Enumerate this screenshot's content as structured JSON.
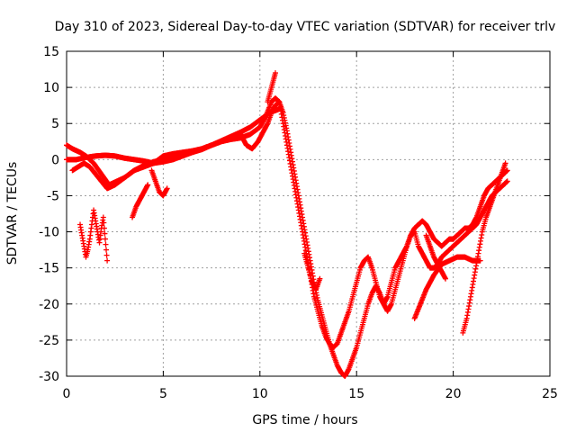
{
  "chart_data": {
    "type": "scatter",
    "title": "Day 310 of 2023, Sidereal Day-to-day VTEC variation (SDTVAR) for receiver trlv",
    "xlabel": "GPS time / hours",
    "ylabel": "SDTVAR / TECUs",
    "xlim": [
      0,
      25
    ],
    "ylim": [
      -30,
      15
    ],
    "xticks": [
      "0",
      "5",
      "10",
      "15",
      "20",
      "25"
    ],
    "yticks": [
      "15",
      "10",
      "5",
      "0",
      "-5",
      "-10",
      "-15",
      "-20",
      "-25",
      "-30"
    ],
    "grid": true,
    "marker": "+",
    "color": "#ff0000",
    "series": [
      {
        "x": [
          0.0,
          0.3,
          0.7,
          1.0,
          1.4,
          1.8,
          2.2,
          2.6,
          3.0,
          3.5,
          4.0,
          4.5,
          5.0,
          5.5,
          6.0,
          6.5,
          7.0,
          7.5,
          8.0,
          8.5,
          9.0,
          9.3,
          9.6,
          9.9,
          10.2,
          10.4,
          10.6,
          10.8,
          11.0,
          11.2,
          11.4,
          11.6,
          11.8,
          12.0,
          12.2,
          12.4,
          12.6,
          12.8,
          13.0,
          13.2,
          13.4,
          13.6,
          13.8,
          14.0,
          14.2,
          14.4,
          14.6,
          14.8,
          15.0,
          15.2,
          15.4,
          15.6,
          15.8,
          16.0,
          16.2,
          16.4,
          16.6,
          16.8,
          17.0,
          17.2,
          17.4,
          17.6,
          17.8,
          18.0,
          18.2,
          18.4,
          18.6,
          18.8,
          19.0,
          19.2,
          19.4,
          19.6,
          19.8,
          20.0,
          20.2,
          20.4,
          20.6,
          20.8,
          21.0,
          21.2,
          21.4,
          21.6,
          21.8,
          22.0,
          22.2,
          22.4,
          22.6,
          22.8
        ],
        "y": [
          2.0,
          1.5,
          1.0,
          0.5,
          -0.5,
          -2.0,
          -3.5,
          -3.0,
          -2.5,
          -1.5,
          -1.0,
          -0.5,
          0.5,
          0.8,
          1.0,
          1.2,
          1.5,
          2.0,
          2.5,
          3.0,
          3.5,
          2.0,
          1.5,
          2.5,
          4.0,
          5.0,
          6.5,
          7.5,
          8.0,
          5.0,
          2.0,
          -1.0,
          -4.0,
          -7.0,
          -10.0,
          -13.0,
          -16.0,
          -19.0,
          -21.0,
          -23.0,
          -24.5,
          -25.5,
          -26.0,
          -25.5,
          -24.0,
          -22.5,
          -21.0,
          -19.0,
          -17.0,
          -15.0,
          -14.0,
          -13.5,
          -15.0,
          -17.0,
          -19.0,
          -20.0,
          -19.0,
          -17.0,
          -15.0,
          -14.0,
          -13.0,
          -12.0,
          -10.5,
          -10.0,
          -12.0,
          -13.0,
          -14.0,
          -15.0,
          -15.0,
          -14.5,
          -13.5,
          -13.0,
          -12.5,
          -12.0,
          -11.5,
          -11.0,
          -10.5,
          -10.0,
          -9.5,
          -9.0,
          -8.0,
          -7.0,
          -6.0,
          -5.0,
          -4.5,
          -4.0,
          -3.5,
          -3.0
        ]
      },
      {
        "x": [
          0.0,
          0.5,
          1.0,
          1.5,
          2.0,
          2.5,
          3.0,
          3.5,
          4.0,
          4.5,
          5.0,
          5.5,
          6.0,
          6.5,
          7.0,
          7.5,
          8.0,
          8.5,
          9.0,
          9.5,
          10.0,
          10.3,
          10.6,
          10.8,
          11.0,
          11.2,
          11.4,
          11.6,
          11.8,
          12.0,
          12.2,
          12.4,
          12.6,
          12.8,
          13.0,
          13.2,
          13.4,
          13.6,
          13.8,
          14.0,
          14.2,
          14.4,
          14.6,
          14.8,
          15.0,
          15.2,
          15.4,
          15.6,
          15.8,
          16.0,
          16.2,
          16.4,
          16.6,
          16.8,
          17.0,
          17.2,
          17.4,
          17.6,
          17.8,
          18.0,
          18.2,
          18.4,
          18.6,
          18.8,
          19.0,
          19.2,
          19.4,
          19.6,
          19.8,
          20.0,
          20.2,
          20.4,
          20.6,
          20.8,
          21.0,
          21.2,
          21.4,
          21.6,
          21.8,
          22.0,
          22.2,
          22.4,
          22.6,
          22.8
        ],
        "y": [
          0.0,
          0.0,
          0.3,
          0.5,
          0.6,
          0.5,
          0.2,
          0.0,
          -0.2,
          -0.5,
          -0.3,
          0.0,
          0.5,
          1.0,
          1.5,
          2.0,
          2.5,
          2.8,
          3.0,
          3.5,
          4.5,
          6.0,
          8.0,
          8.5,
          8.0,
          6.5,
          4.0,
          1.0,
          -2.0,
          -5.0,
          -8.0,
          -11.0,
          -14.0,
          -17.0,
          -19.5,
          -21.5,
          -23.5,
          -25.5,
          -27.0,
          -28.5,
          -29.5,
          -30.0,
          -29.0,
          -27.5,
          -26.0,
          -24.0,
          -22.0,
          -20.0,
          -18.5,
          -17.5,
          -18.5,
          -20.0,
          -21.0,
          -20.0,
          -18.0,
          -16.0,
          -14.0,
          -12.0,
          -10.5,
          -9.5,
          -9.0,
          -8.5,
          -9.0,
          -10.0,
          -11.0,
          -11.5,
          -12.0,
          -11.5,
          -11.0,
          -11.0,
          -10.5,
          -10.0,
          -9.5,
          -9.5,
          -9.0,
          -8.0,
          -6.5,
          -5.0,
          -4.0,
          -3.5,
          -3.0,
          -2.5,
          -2.0,
          -1.5
        ]
      },
      {
        "x": [
          0.3,
          0.6,
          0.9,
          1.2,
          1.5,
          1.8,
          2.1,
          2.5,
          3.0,
          3.5,
          4.0,
          4.5,
          5.0,
          5.5,
          6.0,
          6.5,
          7.0,
          7.5,
          8.0,
          8.5,
          9.0,
          9.5,
          10.0,
          10.5,
          11.0
        ],
        "y": [
          -1.5,
          -1.0,
          -0.5,
          -1.0,
          -2.0,
          -3.0,
          -4.0,
          -3.5,
          -2.5,
          -1.5,
          -0.8,
          -0.3,
          0.0,
          0.3,
          0.6,
          1.0,
          1.4,
          2.0,
          2.6,
          3.2,
          3.8,
          4.5,
          5.5,
          6.5,
          7.0
        ]
      },
      {
        "x": [
          0.7,
          0.8,
          0.9,
          1.0,
          1.1,
          1.2,
          1.3,
          1.4,
          1.5,
          1.6,
          1.7,
          1.8,
          1.9,
          2.0,
          2.1
        ],
        "y": [
          -9.0,
          -10.5,
          -12.0,
          -13.5,
          -12.5,
          -11.0,
          -9.0,
          -7.0,
          -8.5,
          -10.0,
          -11.5,
          -9.5,
          -8.0,
          -11.0,
          -14.0
        ]
      },
      {
        "x": [
          3.4,
          3.6,
          3.8,
          4.0,
          4.2
        ],
        "y": [
          -8.0,
          -6.5,
          -5.5,
          -4.5,
          -3.5
        ]
      },
      {
        "x": [
          4.4,
          4.6,
          4.8,
          5.0,
          5.2
        ],
        "y": [
          -1.5,
          -3.0,
          -4.5,
          -5.0,
          -4.0
        ]
      },
      {
        "x": [
          10.4,
          10.5,
          10.6,
          10.7,
          10.8
        ],
        "y": [
          8.0,
          9.0,
          10.0,
          11.0,
          12.0
        ]
      },
      {
        "x": [
          12.3,
          12.5,
          12.7,
          12.9,
          13.1
        ],
        "y": [
          -13.0,
          -15.0,
          -17.0,
          -18.0,
          -16.5
        ]
      },
      {
        "x": [
          18.0,
          18.3,
          18.6,
          19.0,
          19.4,
          19.8,
          20.2,
          20.6,
          21.0,
          21.4
        ],
        "y": [
          -22.0,
          -20.0,
          -18.0,
          -16.0,
          -14.5,
          -14.0,
          -13.5,
          -13.5,
          -14.0,
          -14.0
        ]
      },
      {
        "x": [
          20.5,
          20.7,
          20.9,
          21.1,
          21.3,
          21.5,
          21.7,
          21.9,
          22.1,
          22.3,
          22.5,
          22.7
        ],
        "y": [
          -24.0,
          -22.0,
          -19.0,
          -16.0,
          -13.0,
          -10.0,
          -8.0,
          -6.5,
          -5.0,
          -3.5,
          -2.0,
          -0.5
        ]
      },
      {
        "x": [
          18.6,
          18.8,
          19.0,
          19.2,
          19.4,
          19.6
        ],
        "y": [
          -10.5,
          -12.0,
          -13.5,
          -14.5,
          -15.5,
          -16.5
        ]
      }
    ]
  }
}
